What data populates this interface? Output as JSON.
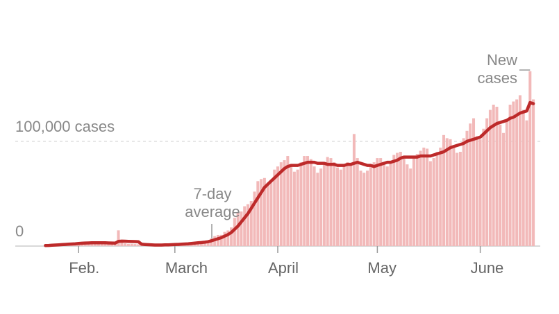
{
  "chart_data": {
    "type": "bar_line",
    "categories": [
      null,
      null,
      null,
      null,
      null,
      null,
      null,
      null,
      null,
      null,
      "Feb.",
      null,
      null,
      null,
      null,
      null,
      null,
      null,
      null,
      null,
      null,
      null,
      null,
      null,
      null,
      null,
      null,
      null,
      null,
      null,
      null,
      null,
      null,
      null,
      null,
      null,
      null,
      null,
      null,
      "March",
      null,
      null,
      null,
      null,
      null,
      null,
      null,
      null,
      null,
      null,
      null,
      null,
      null,
      null,
      null,
      null,
      null,
      null,
      null,
      null,
      null,
      null,
      null,
      null,
      null,
      null,
      null,
      null,
      null,
      null,
      "April",
      null,
      null,
      null,
      null,
      null,
      null,
      null,
      null,
      null,
      null,
      null,
      null,
      null,
      null,
      null,
      null,
      null,
      null,
      null,
      null,
      null,
      null,
      null,
      null,
      null,
      null,
      null,
      null,
      null,
      "May",
      null,
      null,
      null,
      null,
      null,
      null,
      null,
      null,
      null,
      null,
      null,
      null,
      null,
      null,
      null,
      null,
      null,
      null,
      null,
      null,
      null,
      null,
      null,
      null,
      null,
      null,
      null,
      null,
      null,
      null,
      "June",
      null,
      null,
      null,
      null,
      null,
      null,
      null,
      null,
      null,
      null,
      null,
      null,
      null,
      null,
      null,
      null
    ],
    "series": [
      {
        "name": "New cases",
        "color": "#f2b9b9",
        "kind": "bar",
        "values": [
          600,
          100,
          300,
          500,
          700,
          800,
          1700,
          1300,
          1800,
          2000,
          2100,
          2600,
          3200,
          3900,
          3700,
          3200,
          3400,
          2700,
          3000,
          2500,
          2000,
          1800,
          15000,
          5000,
          2600,
          2000,
          2100,
          1900,
          1700,
          600,
          1000,
          1000,
          700,
          600,
          800,
          900,
          1100,
          1300,
          1800,
          1900,
          1800,
          2500,
          2300,
          2700,
          2900,
          3900,
          3900,
          3900,
          4300,
          4600,
          7300,
          9500,
          10600,
          10700,
          13500,
          14900,
          17800,
          27000,
          32000,
          33000,
          38000,
          40000,
          43000,
          52000,
          62000,
          64000,
          65000,
          58000,
          63000,
          73000,
          76000,
          80000,
          82000,
          86000,
          78000,
          71000,
          73000,
          80000,
          86000,
          86000,
          83000,
          76000,
          70000,
          74000,
          80000,
          85000,
          84000,
          80000,
          75000,
          73000,
          76000,
          80000,
          79000,
          107000,
          84000,
          72000,
          70000,
          72000,
          76000,
          80000,
          84000,
          84000,
          80000,
          76000,
          79000,
          87000,
          89000,
          90000,
          86000,
          78000,
          74000,
          84000,
          88000,
          91000,
          94000,
          93000,
          81000,
          84000,
          90000,
          94000,
          106000,
          103000,
          102000,
          95000,
          89000,
          90000,
          103000,
          110000,
          117000,
          122000,
          105000,
          102000,
          112000,
          122000,
          130000,
          135000,
          133000,
          116000,
          108000,
          120000,
          135000,
          138000,
          140000,
          144000,
          130000,
          120000,
          167000,
          140000
        ]
      },
      {
        "name": "7-day average",
        "color": "#bd2a2a",
        "kind": "line",
        "values": [
          500,
          600,
          800,
          1000,
          1200,
          1400,
          1600,
          1800,
          2000,
          2200,
          2500,
          2700,
          2900,
          3000,
          3100,
          3200,
          3200,
          3200,
          3100,
          3000,
          2900,
          2800,
          4500,
          4700,
          4600,
          4500,
          4400,
          4300,
          4200,
          1800,
          1500,
          1300,
          1100,
          1000,
          1000,
          1000,
          1100,
          1200,
          1300,
          1500,
          1600,
          1800,
          2000,
          2200,
          2500,
          2800,
          3100,
          3400,
          3700,
          4200,
          5000,
          6000,
          7000,
          8000,
          9500,
          11000,
          13000,
          16000,
          19000,
          23000,
          27000,
          31000,
          36000,
          41000,
          46000,
          51000,
          56000,
          59000,
          62000,
          65000,
          68000,
          71000,
          74000,
          76000,
          77000,
          77000,
          77000,
          78000,
          79000,
          80000,
          80000,
          80000,
          79000,
          79000,
          79000,
          78000,
          78000,
          78000,
          77000,
          77000,
          77000,
          78000,
          78000,
          79000,
          80000,
          79000,
          78000,
          77000,
          77000,
          76000,
          77000,
          78000,
          79000,
          80000,
          80000,
          81000,
          82000,
          84000,
          85000,
          85000,
          85000,
          85000,
          85000,
          86000,
          86000,
          86000,
          86000,
          87000,
          88000,
          89000,
          90000,
          92000,
          94000,
          95000,
          96000,
          97000,
          98000,
          100000,
          101000,
          102000,
          103000,
          104000,
          107000,
          110000,
          113000,
          115000,
          117000,
          118000,
          119000,
          120000,
          122000,
          123000,
          125000,
          127000,
          128000,
          129000,
          137000,
          136000
        ]
      }
    ],
    "ylim": [
      0,
      180000
    ],
    "yticks": [
      {
        "value": 0,
        "label": "0"
      },
      {
        "value": 100000,
        "label": "100,000 cases"
      }
    ],
    "grid": true
  }
}
